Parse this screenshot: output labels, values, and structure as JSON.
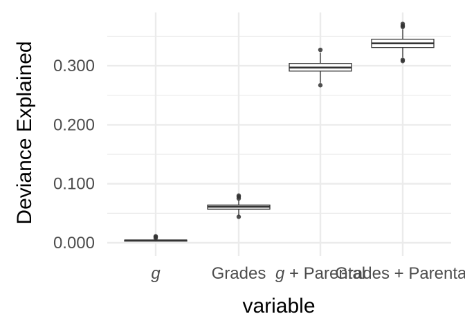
{
  "chart_data": {
    "type": "box",
    "xlabel": "variable",
    "ylabel": "Deviance Explained",
    "categories": [
      "g",
      "Grades",
      "g + Parental",
      "Grades + Parental"
    ],
    "category_italic_part": [
      "g",
      "",
      "g",
      ""
    ],
    "yticks": [
      "0.000",
      "0.100",
      "0.200",
      "0.300"
    ],
    "ylim": [
      -0.02,
      0.39
    ],
    "boxes": [
      {
        "category": "g",
        "whisker_low": 0.003,
        "q1": 0.0035,
        "median": 0.004,
        "q3": 0.0045,
        "whisker_high": 0.006,
        "outliers": [
          0.008,
          0.01,
          0.011
        ]
      },
      {
        "category": "Grades",
        "whisker_low": 0.046,
        "q1": 0.057,
        "median": 0.061,
        "q3": 0.064,
        "whisker_high": 0.072,
        "outliers": [
          0.044,
          0.075,
          0.078,
          0.08
        ]
      },
      {
        "category": "g + Parental",
        "whisker_low": 0.271,
        "q1": 0.291,
        "median": 0.297,
        "q3": 0.304,
        "whisker_high": 0.322,
        "outliers": [
          0.267,
          0.327
        ]
      },
      {
        "category": "Grades + Parental",
        "whisker_low": 0.314,
        "q1": 0.331,
        "median": 0.338,
        "q3": 0.345,
        "whisker_high": 0.362,
        "outliers": [
          0.308,
          0.31,
          0.366,
          0.368,
          0.371
        ]
      }
    ],
    "grid": true,
    "colors": {
      "grid_major": "#ebebeb",
      "box_line": "#333333",
      "background": "#ffffff"
    }
  }
}
